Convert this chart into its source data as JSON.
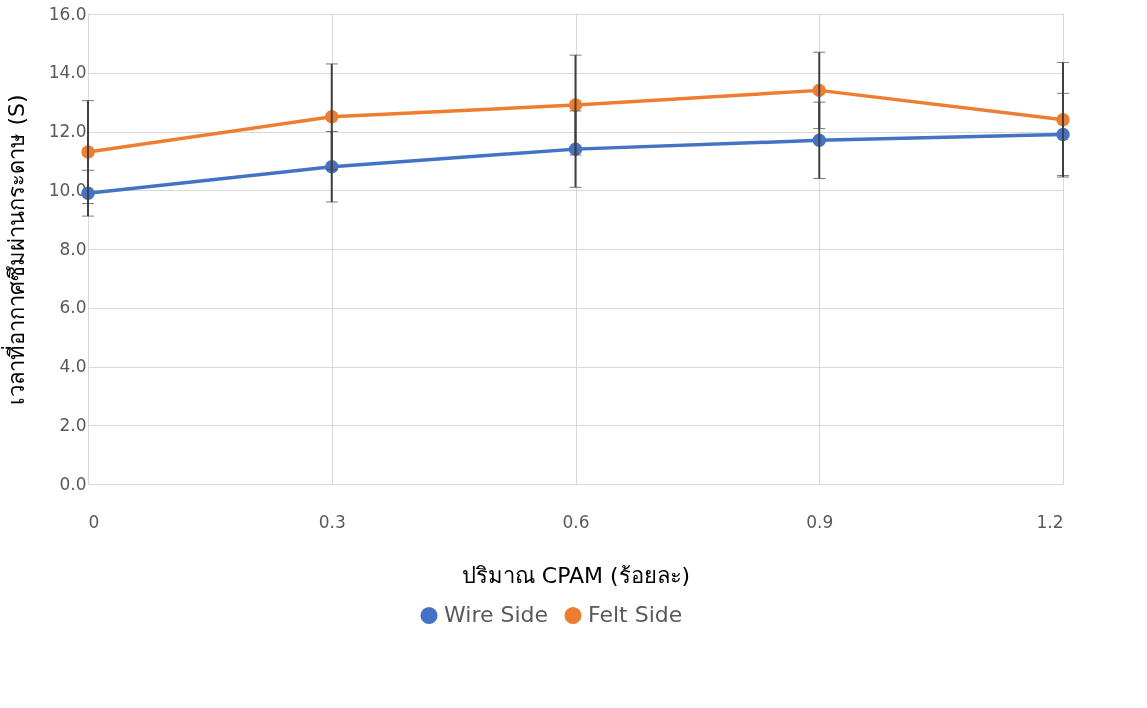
{
  "chart_data": {
    "type": "line",
    "xlabel": "ปริมาณ CPAM (ร้อยละ)",
    "ylabel": "เวลาที่อากาศซึมผ่านกระดาษ (S)",
    "x": [
      0,
      0.3,
      0.6,
      0.9,
      1.2
    ],
    "xlim": [
      0,
      1.2
    ],
    "xticks": [
      0,
      0.3,
      0.6,
      0.9,
      1.2
    ],
    "ylim": [
      0,
      16
    ],
    "yticks": [
      {
        "value": 0,
        "label": "0.0"
      },
      {
        "value": 2,
        "label": "2.0"
      },
      {
        "value": 4,
        "label": "4.0"
      },
      {
        "value": 6,
        "label": "6.0"
      },
      {
        "value": 8,
        "label": "8.0"
      },
      {
        "value": 10,
        "label": "10.0"
      },
      {
        "value": 12,
        "label": "12.0"
      },
      {
        "value": 14,
        "label": "14.0"
      },
      {
        "value": 16,
        "label": "16.0"
      }
    ],
    "series": [
      {
        "name": "Wire Side",
        "color": "#4472c4",
        "values": [
          9.9,
          10.8,
          11.4,
          11.7,
          11.9
        ],
        "errors": [
          0.78,
          1.2,
          1.3,
          1.3,
          1.4
        ]
      },
      {
        "name": "Felt Side",
        "color": "#ed7d31",
        "values": [
          11.3,
          12.5,
          12.9,
          13.4,
          12.4
        ],
        "errors": [
          1.75,
          1.8,
          1.7,
          1.3,
          1.95
        ]
      }
    ],
    "grid": true,
    "legend": "bottom",
    "marker": "circle",
    "line_style": "solid"
  }
}
